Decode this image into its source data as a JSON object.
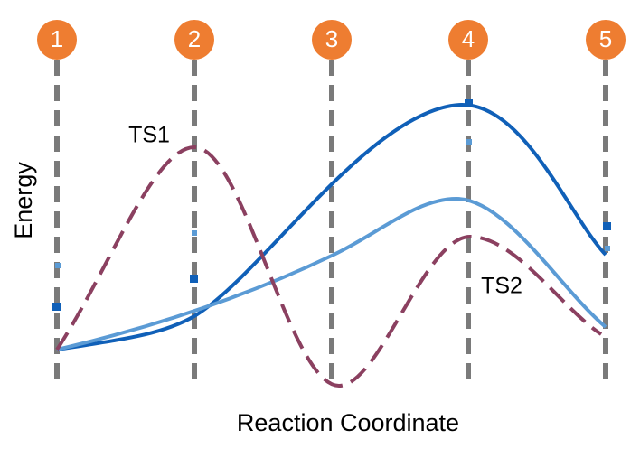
{
  "stages": [
    "1",
    "2",
    "3",
    "4",
    "5"
  ],
  "annotations": [
    "TS1",
    "TS2"
  ],
  "axes": {
    "y_label": "Energy",
    "x_label": "Reaction Coordinate"
  }
}
